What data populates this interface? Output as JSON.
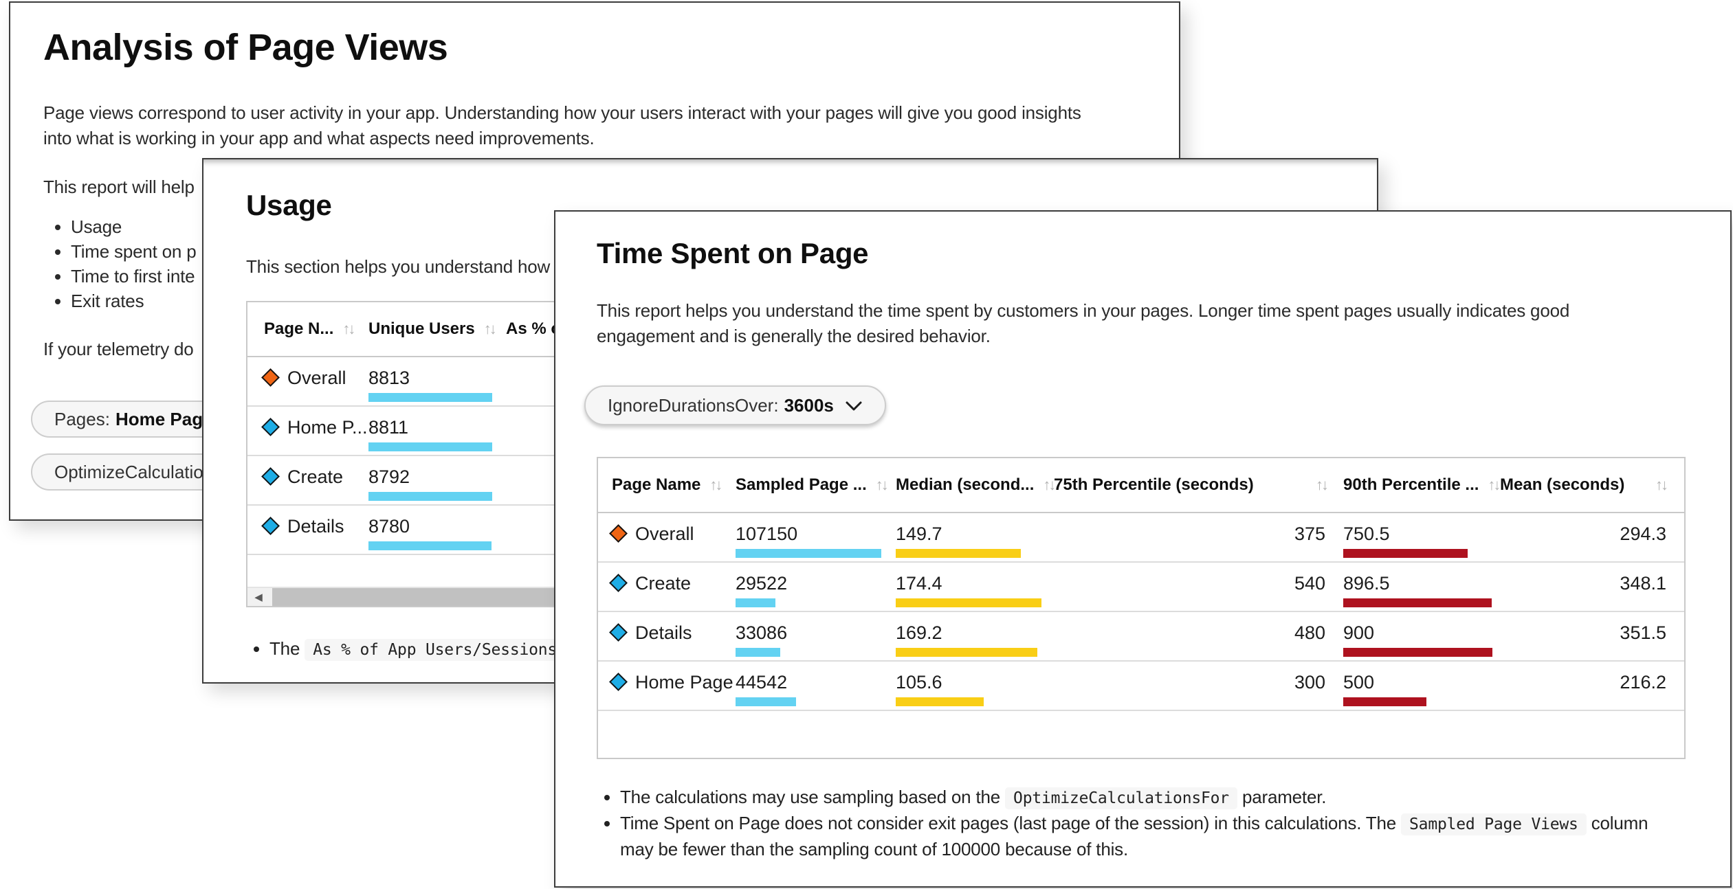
{
  "colors": {
    "bar_cyan": "#63d2f2",
    "bar_yellow": "#f9ce16",
    "bar_red": "#ae121f",
    "diamond_orange": "#f06514",
    "diamond_blue": "#1eade6"
  },
  "icons": {
    "sort": "↑↓",
    "scroll_left": "◀"
  },
  "back_window": {
    "title": "Analysis of Page Views",
    "intro": "Page views correspond to user activity in your app. Understanding how your users interact with your pages will give you good insights\ninto what is working in your app and what aspects need improvements.",
    "report_help": "This report will help",
    "bullets": [
      "Usage",
      "Time spent on p",
      "Time to first inte",
      "Exit rates"
    ],
    "telemetry": "If your telemetry do",
    "pill_pages_label": "Pages:",
    "pill_pages_value": "Home Page, D",
    "pill_optimize_label": "OptimizeCalculations"
  },
  "usage_window": {
    "title": "Usage",
    "description": "This section helps you understand how",
    "table": {
      "headers": [
        {
          "label": "Page N...",
          "sort": true
        },
        {
          "label": "Unique Users",
          "sort": true
        },
        {
          "label": "As % of",
          "sort": false
        }
      ],
      "rows": [
        {
          "icon": "orange",
          "name": "Overall",
          "unique_users": 8813
        },
        {
          "icon": "blue",
          "name": "Home P...",
          "unique_users": 8811
        },
        {
          "icon": "blue",
          "name": "Create",
          "unique_users": 8792
        },
        {
          "icon": "blue",
          "name": "Details",
          "unique_users": 8780
        }
      ]
    },
    "note": {
      "pre": "The ",
      "code": "As % of App Users/Sessions/V",
      "post": ""
    }
  },
  "timespent_window": {
    "title": "Time Spent on Page",
    "description": "This report helps you understand the time spent by customers in your pages. Longer time spent pages usually indicates good\nengagement and is generally the desired behavior.",
    "filter": {
      "label": "IgnoreDurationsOver:",
      "value": "3600s"
    },
    "table": {
      "headers": [
        {
          "label": "Page Name",
          "sort": true
        },
        {
          "label": "Sampled Page ...",
          "sort": true
        },
        {
          "label": "Median (second...",
          "sort": true
        },
        {
          "label": "75th Percentile (seconds)",
          "sort": true
        },
        {
          "label": "90th Percentile ...",
          "sort": true
        },
        {
          "label": "Mean (seconds)",
          "sort": true
        }
      ],
      "rows": [
        {
          "icon": "orange",
          "name": "Overall",
          "sampled": 107150,
          "median": 149.7,
          "p75": 375,
          "p90": 750.5,
          "mean": 294.3
        },
        {
          "icon": "blue",
          "name": "Create",
          "sampled": 29522,
          "median": 174.4,
          "p75": 540,
          "p90": 896.5,
          "mean": 348.1
        },
        {
          "icon": "blue",
          "name": "Details",
          "sampled": 33086,
          "median": 169.2,
          "p75": 480,
          "p90": 900,
          "mean": 351.5
        },
        {
          "icon": "blue",
          "name": "Home Page",
          "sampled": 44542,
          "median": 105.6,
          "p75": 300,
          "p90": 500,
          "mean": 216.2
        }
      ]
    },
    "notes": [
      {
        "pre": "The calculations may use sampling based on the ",
        "code": "OptimizeCalculationsFor",
        "post": " parameter.",
        "line2": ""
      },
      {
        "pre": "Time Spent on Page does not consider exit pages (last page of the session) in this calculations. The ",
        "code": "Sampled Page Views",
        "post": " column",
        "line2": "may be fewer than the sampling count of 100000 because of this."
      }
    ]
  }
}
